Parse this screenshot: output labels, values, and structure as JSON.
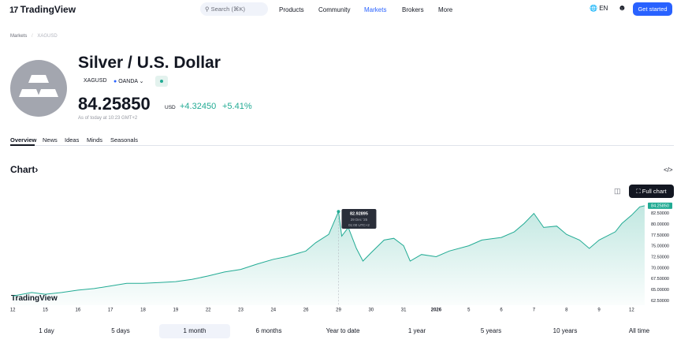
{
  "nav": {
    "logo": "TradingView",
    "search": "Search (⌘K)",
    "links": [
      "Products",
      "Community",
      "Markets",
      "Brokers",
      "More"
    ],
    "language": "EN",
    "cta": "Get started"
  },
  "breadcrumb": [
    "Markets",
    "XAGUSD"
  ],
  "symbol": {
    "title": "Silver / U.S. Dollar",
    "ticker": "XAGUSD",
    "source": "OANDA",
    "price": "84.25850",
    "currency": "USD",
    "change": "+4.32450",
    "change_percent": "+5.41%",
    "as_of": "As of today at 10:23 GMT+2"
  },
  "tabs": [
    "Overview",
    "News",
    "Ideas",
    "Minds",
    "Seasonals"
  ],
  "chart_section": {
    "heading": "Chart",
    "full_chart": "Full chart"
  },
  "chart_data": {
    "type": "line",
    "color": "#22ab94",
    "grid": false,
    "x": [
      0,
      0.58,
      1,
      1.5,
      2,
      2.5,
      3,
      3.5,
      4,
      4.5,
      5,
      5.5,
      6,
      6.5,
      7,
      7.5,
      8,
      8.4,
      9,
      9.3,
      9.7,
      10,
      10.1,
      10.3,
      10.55,
      10.75,
      11,
      11.4,
      11.7,
      12,
      12.2,
      12.55,
      13,
      13.4,
      14,
      14.4,
      15,
      15.4,
      15.7,
      16,
      16.3,
      16.7,
      17,
      17.4,
      17.7,
      18,
      18.5,
      18.7,
      19,
      19.25,
      19.4
    ],
    "values": [
      63.6,
      64.4,
      64.0,
      64.4,
      64.95,
      65.3,
      65.9,
      66.5,
      66.5,
      66.7,
      66.9,
      67.4,
      68.2,
      69.1,
      69.7,
      70.9,
      72.0,
      72.6,
      73.9,
      75.8,
      77.7,
      82.93,
      77.3,
      79.3,
      74.5,
      71.6,
      73.5,
      76.4,
      76.8,
      75.1,
      71.6,
      73.1,
      72.6,
      73.9,
      75.1,
      76.4,
      77.0,
      78.3,
      80.2,
      82.5,
      79.3,
      79.6,
      77.7,
      76.4,
      74.5,
      76.4,
      78.3,
      80.2,
      82.1,
      84.0,
      84.2585
    ],
    "xlim": [
      -0.15,
      19.45
    ],
    "xticks": [
      {
        "value": 0,
        "label": "12"
      },
      {
        "value": 1,
        "label": "15"
      },
      {
        "value": 2,
        "label": "16"
      },
      {
        "value": 3,
        "label": "17"
      },
      {
        "value": 4,
        "label": "18"
      },
      {
        "value": 5,
        "label": "19"
      },
      {
        "value": 6,
        "label": "22"
      },
      {
        "value": 7,
        "label": "23"
      },
      {
        "value": 8,
        "label": "24"
      },
      {
        "value": 9,
        "label": "26"
      },
      {
        "value": 10,
        "label": "29"
      },
      {
        "value": 11,
        "label": "30"
      },
      {
        "value": 12,
        "label": "31"
      },
      {
        "value": 13,
        "label": "2026"
      },
      {
        "value": 14,
        "label": "5"
      },
      {
        "value": 15,
        "label": "6"
      },
      {
        "value": 16,
        "label": "7"
      },
      {
        "value": 17,
        "label": "8"
      },
      {
        "value": 18,
        "label": "9"
      },
      {
        "value": 19,
        "label": "12"
      }
    ],
    "ylim": [
      61.5,
      85.5
    ],
    "yticks": [
      {
        "value": 62.5,
        "label": "62.50000"
      },
      {
        "value": 65,
        "label": "65.00000"
      },
      {
        "value": 67.5,
        "label": "67.50000"
      },
      {
        "value": 70,
        "label": "70.00000"
      },
      {
        "value": 72.5,
        "label": "72.50000"
      },
      {
        "value": 75,
        "label": "75.00000"
      },
      {
        "value": 77.5,
        "label": "77.50000"
      },
      {
        "value": 80,
        "label": "80.00000"
      },
      {
        "value": 82.5,
        "label": "82.50000"
      }
    ],
    "last_price": {
      "value": 84.2585,
      "label": "84.25850"
    },
    "tooltip": {
      "x": 10,
      "value": 82.92895,
      "label": "82.92895",
      "date": "29 Dec '25",
      "time": "01:00 UTC+2"
    }
  },
  "ranges": [
    "1 day",
    "5 days",
    "1 month",
    "6 months",
    "Year to date",
    "1 year",
    "5 years",
    "10 years",
    "All time"
  ],
  "selected_range": 2
}
